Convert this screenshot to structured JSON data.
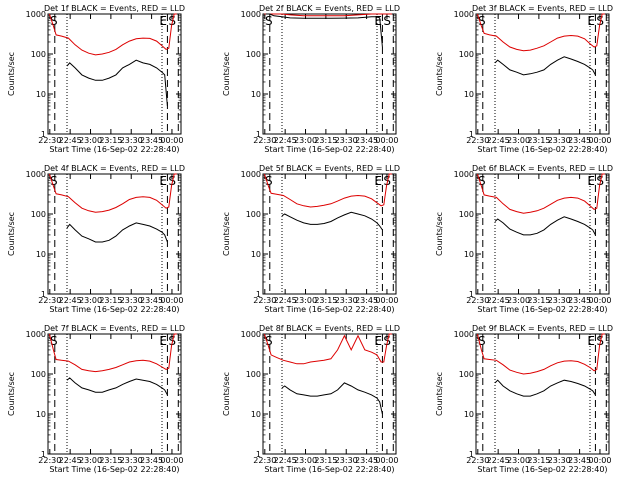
{
  "figure": {
    "xlabel": "Start Time (16-Sep-02 22:28:40)",
    "ylabel": "Counts/sec",
    "x_tick_labels": [
      "22:30",
      "22:45",
      "23:00",
      "23:15",
      "23:30",
      "23:45",
      "00:00"
    ],
    "y_tick_labels": [
      "1",
      "10",
      "100",
      "1000"
    ],
    "flag_left": "S",
    "flag_right_1": "E",
    "flag_right_2": "S",
    "colors": {
      "events": "#000000",
      "lld": "#dd0000",
      "axes": "#000000"
    }
  },
  "chart_data": [
    {
      "type": "line",
      "title": "Det 1f BLACK = Events, RED = LLD",
      "xlabel": "Start Time (16-Sep-02 22:28:40)",
      "ylabel": "Counts/sec",
      "yscale": "log",
      "ylim": [
        1,
        1000
      ],
      "xlim_minutes": [
        0,
        98
      ],
      "x": [
        2,
        4,
        6,
        10,
        15,
        20,
        30,
        40,
        50,
        60,
        70,
        80,
        85,
        87,
        88,
        89,
        92
      ],
      "dashed_lines_minutes": [
        5,
        88,
        96
      ],
      "dotted_lines_minutes": [
        14,
        84
      ],
      "series": [
        {
          "name": "LLD",
          "color": "#dd0000",
          "x": [
            1,
            4,
            6,
            10,
            15,
            20,
            25,
            30,
            35,
            40,
            45,
            50,
            55,
            60,
            65,
            70,
            75,
            80,
            84,
            87,
            89,
            91,
            93,
            95
          ],
          "values": [
            1000,
            500,
            300,
            280,
            250,
            170,
            125,
            105,
            95,
            100,
            110,
            130,
            170,
            210,
            240,
            250,
            245,
            210,
            160,
            130,
            140,
            500,
            1000,
            1000
          ]
        },
        {
          "name": "Events",
          "color": "#000000",
          "x": [
            14,
            16,
            20,
            25,
            30,
            35,
            40,
            45,
            50,
            55,
            60,
            65,
            70,
            75,
            80,
            84,
            86,
            88
          ],
          "values": [
            50,
            60,
            45,
            30,
            25,
            22,
            22,
            25,
            30,
            45,
            55,
            70,
            60,
            55,
            45,
            35,
            30,
            5
          ]
        }
      ]
    },
    {
      "type": "line",
      "title": "Det 2f BLACK = Events, RED = LLD",
      "xlabel": "Start Time (16-Sep-02 22:28:40)",
      "ylabel": "Counts/sec",
      "yscale": "log",
      "ylim": [
        1,
        1000
      ],
      "xlim_minutes": [
        0,
        98
      ],
      "dashed_lines_minutes": [
        5,
        88,
        96
      ],
      "dotted_lines_minutes": [
        14,
        84
      ],
      "series": [
        {
          "name": "LLD",
          "color": "#dd0000",
          "x": [
            1,
            3,
            5,
            8,
            14,
            20,
            30,
            40,
            50,
            60,
            70,
            80,
            85,
            88,
            90,
            92,
            95
          ],
          "values": [
            1000,
            1000,
            1000,
            1000,
            1000,
            950,
            900,
            900,
            900,
            900,
            950,
            1000,
            1000,
            1000,
            1000,
            1000,
            1000
          ]
        },
        {
          "name": "Events",
          "color": "#000000",
          "x": [
            2,
            5,
            8,
            14,
            20,
            30,
            40,
            50,
            60,
            70,
            80,
            84,
            86,
            88
          ],
          "values": [
            1000,
            1000,
            900,
            850,
            800,
            780,
            780,
            780,
            790,
            800,
            850,
            850,
            800,
            150
          ]
        }
      ]
    },
    {
      "type": "line",
      "title": "Det 3f BLACK = Events, RED = LLD",
      "xlabel": "Start Time (16-Sep-02 22:28:40)",
      "ylabel": "Counts/sec",
      "yscale": "log",
      "ylim": [
        1,
        1000
      ],
      "xlim_minutes": [
        0,
        98
      ],
      "dashed_lines_minutes": [
        5,
        88,
        96
      ],
      "dotted_lines_minutes": [
        14,
        84
      ],
      "series": [
        {
          "name": "LLD",
          "color": "#dd0000",
          "x": [
            1,
            4,
            6,
            10,
            15,
            20,
            25,
            30,
            35,
            40,
            45,
            50,
            55,
            60,
            65,
            70,
            75,
            80,
            84,
            87,
            89,
            91,
            93,
            95
          ],
          "values": [
            1000,
            500,
            330,
            300,
            280,
            200,
            150,
            130,
            120,
            125,
            140,
            160,
            200,
            250,
            280,
            290,
            280,
            240,
            180,
            150,
            160,
            500,
            1000,
            1000
          ]
        },
        {
          "name": "Events",
          "color": "#000000",
          "x": [
            14,
            16,
            20,
            25,
            30,
            35,
            40,
            45,
            50,
            55,
            60,
            65,
            70,
            75,
            80,
            84,
            86,
            88
          ],
          "values": [
            60,
            70,
            55,
            40,
            35,
            30,
            32,
            35,
            40,
            55,
            70,
            85,
            75,
            65,
            55,
            45,
            40,
            30
          ]
        }
      ]
    },
    {
      "type": "line",
      "title": "Det 4f BLACK = Events, RED = LLD",
      "xlabel": "Start Time (16-Sep-02 22:28:40)",
      "ylabel": "Counts/sec",
      "yscale": "log",
      "ylim": [
        1,
        1000
      ],
      "xlim_minutes": [
        0,
        98
      ],
      "dashed_lines_minutes": [
        5,
        88,
        96
      ],
      "dotted_lines_minutes": [
        14,
        84
      ],
      "series": [
        {
          "name": "LLD",
          "color": "#dd0000",
          "x": [
            1,
            4,
            6,
            10,
            15,
            20,
            25,
            30,
            35,
            40,
            45,
            50,
            55,
            60,
            65,
            70,
            75,
            80,
            84,
            87,
            89,
            91,
            93,
            95
          ],
          "values": [
            1000,
            500,
            320,
            300,
            270,
            190,
            140,
            120,
            110,
            115,
            125,
            145,
            180,
            230,
            260,
            270,
            260,
            220,
            170,
            140,
            150,
            500,
            1000,
            1000
          ]
        },
        {
          "name": "Events",
          "color": "#000000",
          "x": [
            14,
            16,
            20,
            25,
            30,
            35,
            40,
            45,
            50,
            55,
            60,
            65,
            70,
            75,
            80,
            84,
            86,
            88
          ],
          "values": [
            45,
            55,
            40,
            28,
            24,
            20,
            20,
            22,
            28,
            40,
            50,
            60,
            55,
            50,
            42,
            35,
            30,
            20
          ]
        }
      ]
    },
    {
      "type": "line",
      "title": "Det 5f BLACK = Events, RED = LLD",
      "xlabel": "Start Time (16-Sep-02 22:28:40)",
      "ylabel": "Counts/sec",
      "yscale": "log",
      "ylim": [
        1,
        1000
      ],
      "xlim_minutes": [
        0,
        98
      ],
      "dashed_lines_minutes": [
        5,
        88,
        96
      ],
      "dotted_lines_minutes": [
        14,
        84
      ],
      "series": [
        {
          "name": "LLD",
          "color": "#dd0000",
          "x": [
            1,
            4,
            6,
            10,
            15,
            20,
            25,
            30,
            35,
            40,
            45,
            50,
            55,
            60,
            65,
            70,
            75,
            80,
            84,
            87,
            89,
            91,
            93,
            95
          ],
          "values": [
            1000,
            500,
            330,
            310,
            290,
            230,
            180,
            160,
            150,
            155,
            165,
            180,
            210,
            250,
            280,
            290,
            280,
            240,
            190,
            160,
            170,
            500,
            1000,
            1000
          ]
        },
        {
          "name": "Events",
          "color": "#000000",
          "x": [
            14,
            16,
            20,
            25,
            30,
            35,
            40,
            45,
            50,
            55,
            60,
            65,
            70,
            75,
            80,
            84,
            86,
            88
          ],
          "values": [
            90,
            100,
            85,
            70,
            60,
            55,
            55,
            58,
            65,
            80,
            95,
            110,
            100,
            90,
            75,
            60,
            50,
            40
          ]
        }
      ]
    },
    {
      "type": "line",
      "title": "Det 6f BLACK = Events, RED = LLD",
      "xlabel": "Start Time (16-Sep-02 22:28:40)",
      "ylabel": "Counts/sec",
      "yscale": "log",
      "ylim": [
        1,
        1000
      ],
      "xlim_minutes": [
        0,
        98
      ],
      "dashed_lines_minutes": [
        5,
        88,
        96
      ],
      "dotted_lines_minutes": [
        14,
        84
      ],
      "series": [
        {
          "name": "LLD",
          "color": "#dd0000",
          "x": [
            1,
            4,
            6,
            10,
            15,
            20,
            25,
            30,
            35,
            40,
            45,
            50,
            55,
            60,
            65,
            70,
            75,
            80,
            84,
            87,
            89,
            91,
            93,
            95
          ],
          "values": [
            1000,
            500,
            300,
            280,
            260,
            180,
            130,
            115,
            105,
            110,
            120,
            140,
            175,
            220,
            250,
            260,
            250,
            210,
            160,
            130,
            140,
            500,
            1000,
            1000
          ]
        },
        {
          "name": "Events",
          "color": "#000000",
          "x": [
            14,
            16,
            20,
            25,
            30,
            35,
            40,
            45,
            50,
            55,
            60,
            65,
            70,
            75,
            80,
            84,
            86,
            88
          ],
          "values": [
            65,
            75,
            60,
            42,
            35,
            30,
            30,
            33,
            40,
            55,
            70,
            85,
            75,
            65,
            55,
            45,
            40,
            30
          ]
        }
      ]
    },
    {
      "type": "line",
      "title": "Det 7f BLACK = Events, RED = LLD",
      "xlabel": "Start Time (16-Sep-02 22:28:40)",
      "ylabel": "Counts/sec",
      "yscale": "log",
      "ylim": [
        1,
        1000
      ],
      "xlim_minutes": [
        0,
        98
      ],
      "dashed_lines_minutes": [
        5,
        88,
        96
      ],
      "dotted_lines_minutes": [
        14,
        84
      ],
      "series": [
        {
          "name": "LLD",
          "color": "#dd0000",
          "x": [
            1,
            4,
            6,
            10,
            15,
            20,
            25,
            30,
            35,
            40,
            45,
            50,
            55,
            60,
            65,
            70,
            75,
            80,
            84,
            87,
            89,
            91,
            93,
            95
          ],
          "values": [
            1000,
            400,
            230,
            220,
            210,
            170,
            130,
            120,
            115,
            120,
            130,
            145,
            170,
            200,
            215,
            220,
            210,
            180,
            150,
            130,
            140,
            500,
            1000,
            1000
          ]
        },
        {
          "name": "Events",
          "color": "#000000",
          "x": [
            14,
            16,
            20,
            25,
            30,
            35,
            40,
            45,
            50,
            55,
            60,
            65,
            70,
            75,
            80,
            84,
            86,
            88
          ],
          "values": [
            70,
            80,
            60,
            45,
            40,
            35,
            35,
            40,
            45,
            55,
            65,
            75,
            70,
            65,
            55,
            45,
            40,
            30
          ]
        }
      ]
    },
    {
      "type": "line",
      "title": "Det 8f BLACK = Events, RED = LLD",
      "xlabel": "Start Time (16-Sep-02 22:28:40)",
      "ylabel": "Counts/sec",
      "yscale": "log",
      "ylim": [
        1,
        1000
      ],
      "xlim_minutes": [
        0,
        98
      ],
      "dashed_lines_minutes": [
        5,
        88,
        96
      ],
      "dotted_lines_minutes": [
        14,
        84
      ],
      "series": [
        {
          "name": "LLD",
          "color": "#dd0000",
          "x": [
            1,
            4,
            6,
            10,
            15,
            20,
            25,
            30,
            35,
            40,
            45,
            50,
            55,
            60,
            65,
            70,
            75,
            80,
            84,
            87,
            89,
            91,
            93,
            95
          ],
          "values": [
            1000,
            500,
            300,
            260,
            220,
            200,
            180,
            180,
            200,
            210,
            220,
            240,
            400,
            900,
            400,
            900,
            400,
            350,
            300,
            200,
            200,
            500,
            1000,
            1000
          ]
        },
        {
          "name": "Events",
          "color": "#000000",
          "x": [
            14,
            16,
            20,
            25,
            30,
            35,
            40,
            45,
            50,
            55,
            60,
            65,
            70,
            75,
            80,
            84,
            86,
            88
          ],
          "values": [
            45,
            50,
            40,
            32,
            30,
            28,
            28,
            30,
            32,
            40,
            60,
            50,
            40,
            35,
            30,
            25,
            20,
            10
          ]
        }
      ]
    },
    {
      "type": "line",
      "title": "Det 9f BLACK = Events, RED = LLD",
      "xlabel": "Start Time (16-Sep-02 22:28:40)",
      "ylabel": "Counts/sec",
      "yscale": "log",
      "ylim": [
        1,
        1000
      ],
      "xlim_minutes": [
        0,
        98
      ],
      "dashed_lines_minutes": [
        5,
        88,
        96
      ],
      "dotted_lines_minutes": [
        14,
        84
      ],
      "series": [
        {
          "name": "LLD",
          "color": "#dd0000",
          "x": [
            1,
            4,
            6,
            10,
            15,
            20,
            25,
            30,
            35,
            40,
            45,
            50,
            55,
            60,
            65,
            70,
            75,
            80,
            84,
            87,
            89,
            91,
            93,
            95
          ],
          "values": [
            1000,
            400,
            240,
            230,
            220,
            170,
            125,
            110,
            100,
            105,
            115,
            130,
            160,
            190,
            210,
            215,
            205,
            175,
            145,
            120,
            130,
            500,
            1000,
            1000
          ]
        },
        {
          "name": "Events",
          "color": "#000000",
          "x": [
            14,
            16,
            20,
            25,
            30,
            35,
            40,
            45,
            50,
            55,
            60,
            65,
            70,
            75,
            80,
            84,
            86,
            88
          ],
          "values": [
            60,
            70,
            50,
            38,
            32,
            28,
            28,
            32,
            38,
            50,
            60,
            70,
            65,
            58,
            50,
            42,
            38,
            30
          ]
        }
      ]
    }
  ]
}
